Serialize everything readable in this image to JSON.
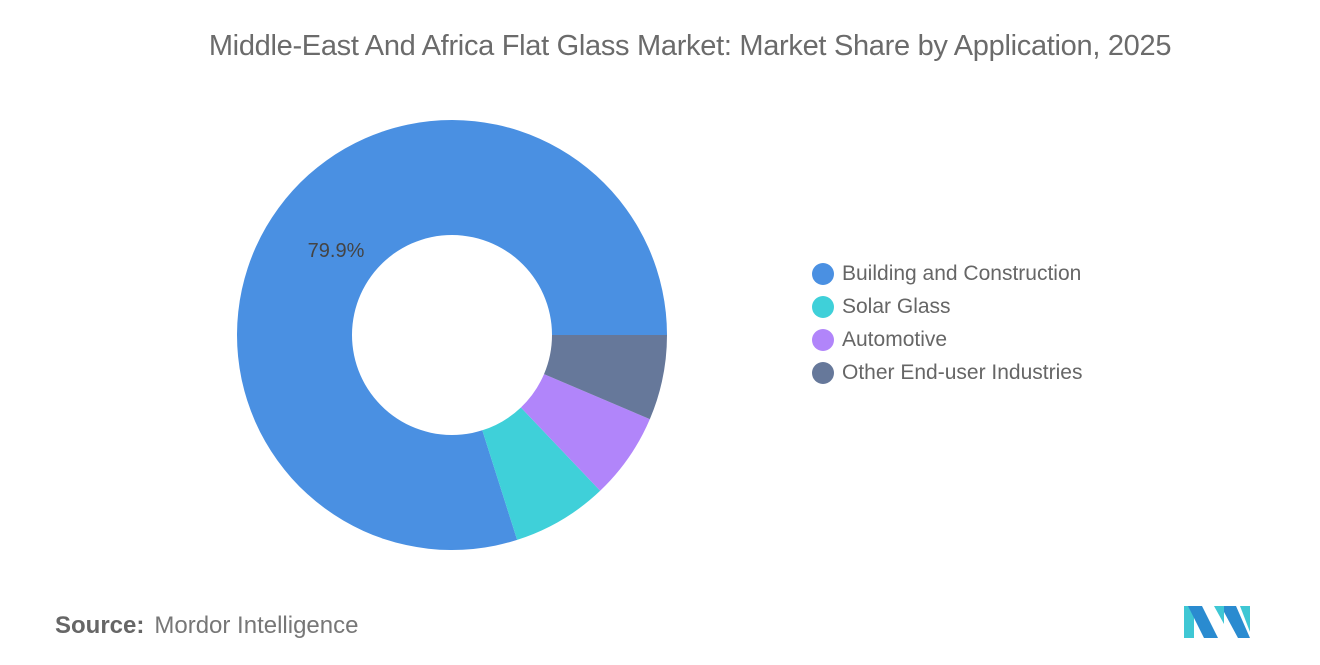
{
  "chart_data": {
    "type": "pie",
    "donut": true,
    "title": "Middle-East And Africa Flat Glass Market: Market Share by Application, 2025",
    "categories": [
      "Building and Construction",
      "Solar Glass",
      "Automotive",
      "Other End-user Industries"
    ],
    "values": [
      79.9,
      7.2,
      6.5,
      6.4
    ],
    "colors": [
      "#4a90e2",
      "#3fd0d9",
      "#b185fa",
      "#66789a"
    ],
    "data_labels": [
      "79.9%",
      "",
      "",
      ""
    ],
    "legend_position": "right"
  },
  "source": {
    "label": "Source:",
    "value": "Mordor Intelligence"
  },
  "logo": {
    "text": "Mordor Intelligence",
    "colors": [
      "#2a8bd0",
      "#3fc7d4"
    ]
  }
}
